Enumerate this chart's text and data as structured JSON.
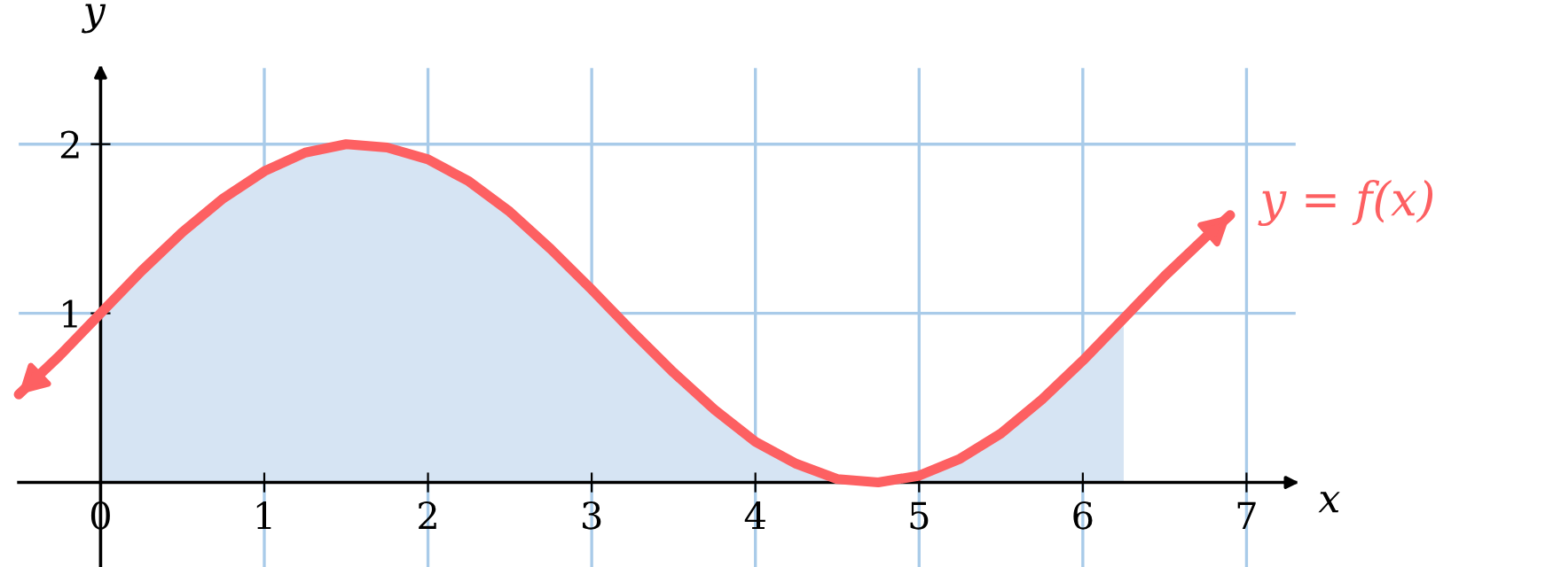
{
  "chart_data": {
    "type": "line",
    "xlabel": "x",
    "ylabel": "y",
    "xlim": [
      -0.5,
      7.3
    ],
    "ylim": [
      -0.5,
      2.45
    ],
    "xticks": [
      {
        "value": 0,
        "label": "0"
      },
      1,
      2,
      3,
      4,
      5,
      6,
      7
    ],
    "yticks": [
      1,
      2
    ],
    "grid": true,
    "marker": "none",
    "line_style": "solid",
    "series": [
      {
        "type": "area",
        "color": "#d6e4f3",
        "x": [
          0,
          0.25,
          0.5,
          0.75,
          1,
          1.25,
          1.5,
          1.75,
          2,
          2.25,
          2.5,
          2.75,
          3,
          3.25,
          3.5,
          3.75,
          4,
          4.25,
          4.5,
          4.75,
          5,
          5.25,
          5.5,
          5.75,
          6,
          6.25
        ],
        "values": [
          1,
          1.25,
          1.48,
          1.68,
          1.84,
          1.95,
          2.0,
          1.98,
          1.91,
          1.78,
          1.6,
          1.38,
          1.14,
          0.89,
          0.65,
          0.43,
          0.24,
          0.11,
          0.02,
          0.0,
          0.04,
          0.14,
          0.29,
          0.49,
          0.72,
          0.97
        ]
      },
      {
        "name": "y = f(x)",
        "color": "#fd6062",
        "x": [
          -0.5,
          -0.25,
          0,
          0.25,
          0.5,
          0.75,
          1,
          1.25,
          1.5,
          1.75,
          2,
          2.25,
          2.5,
          2.75,
          3,
          3.25,
          3.5,
          3.75,
          4,
          4.25,
          4.5,
          4.75,
          5,
          5.25,
          5.5,
          5.75,
          6,
          6.25,
          6.5,
          6.75,
          6.9
        ],
        "values": [
          0.52,
          0.75,
          1,
          1.25,
          1.48,
          1.68,
          1.84,
          1.95,
          2.0,
          1.98,
          1.91,
          1.78,
          1.6,
          1.38,
          1.14,
          0.89,
          0.65,
          0.43,
          0.24,
          0.11,
          0.02,
          0.0,
          0.04,
          0.14,
          0.29,
          0.49,
          0.72,
          0.97,
          1.22,
          1.45,
          1.58
        ]
      }
    ]
  }
}
